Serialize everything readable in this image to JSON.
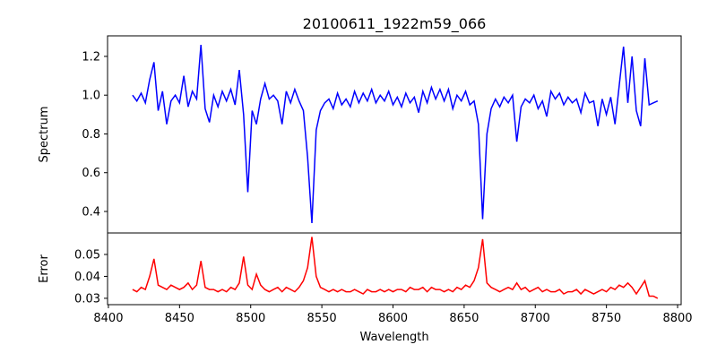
{
  "chart_data": [
    {
      "type": "line",
      "title": "20100611_1922m59_066",
      "xlabel": "",
      "ylabel": "Spectrum",
      "xlim": [
        8399.4,
        8802.5
      ],
      "ylim": [
        0.289,
        1.306
      ],
      "xticks": [],
      "yticks": [
        0.4,
        0.6,
        0.8,
        1.0,
        1.2
      ],
      "ytick_labels": [
        "0.4",
        "0.6",
        "0.8",
        "1.0",
        "1.2"
      ],
      "color": "#0000ff",
      "x_start": 8417,
      "x_step": 3,
      "values": [
        1.0,
        0.97,
        1.01,
        0.96,
        1.08,
        1.17,
        0.92,
        1.02,
        0.85,
        0.97,
        1.0,
        0.96,
        1.1,
        0.94,
        1.02,
        0.98,
        1.26,
        0.93,
        0.86,
        1.0,
        0.94,
        1.02,
        0.97,
        1.03,
        0.95,
        1.13,
        0.9,
        0.5,
        0.92,
        0.85,
        0.98,
        1.06,
        0.98,
        1.0,
        0.97,
        0.85,
        1.02,
        0.96,
        1.03,
        0.97,
        0.92,
        0.68,
        0.34,
        0.82,
        0.92,
        0.96,
        0.98,
        0.93,
        1.01,
        0.95,
        0.98,
        0.94,
        1.02,
        0.96,
        1.01,
        0.97,
        1.03,
        0.96,
        1.0,
        0.97,
        1.02,
        0.95,
        0.99,
        0.94,
        1.01,
        0.96,
        0.99,
        0.91,
        1.02,
        0.96,
        1.04,
        0.98,
        1.03,
        0.97,
        1.03,
        0.93,
        1.0,
        0.97,
        1.02,
        0.95,
        0.97,
        0.85,
        0.36,
        0.8,
        0.93,
        0.98,
        0.94,
        0.99,
        0.96,
        1.0,
        0.76,
        0.94,
        0.98,
        0.96,
        1.0,
        0.93,
        0.97,
        0.89,
        1.02,
        0.98,
        1.01,
        0.95,
        0.99,
        0.96,
        0.98,
        0.91,
        1.01,
        0.96,
        0.97,
        0.84,
        0.98,
        0.9,
        0.99,
        0.85,
        1.05,
        1.25,
        0.96,
        1.2,
        0.92,
        0.84,
        1.19,
        0.95,
        0.96,
        0.97
      ]
    },
    {
      "type": "line",
      "title": "",
      "xlabel": "Wavelength",
      "ylabel": "Error",
      "xlim": [
        8399.4,
        8802.5
      ],
      "ylim": [
        0.0271,
        0.0598
      ],
      "xticks": [
        8400,
        8450,
        8500,
        8550,
        8600,
        8650,
        8700,
        8750,
        8800
      ],
      "xtick_labels": [
        "8400",
        "8450",
        "8500",
        "8550",
        "8600",
        "8650",
        "8700",
        "8750",
        "8800"
      ],
      "yticks": [
        0.03,
        0.04,
        0.05
      ],
      "ytick_labels": [
        "0.03",
        "0.04",
        "0.05"
      ],
      "color": "#ff0000",
      "x_start": 8417,
      "x_step": 3,
      "values": [
        0.034,
        0.033,
        0.035,
        0.034,
        0.04,
        0.048,
        0.036,
        0.035,
        0.034,
        0.036,
        0.035,
        0.034,
        0.035,
        0.037,
        0.034,
        0.036,
        0.047,
        0.035,
        0.034,
        0.034,
        0.033,
        0.034,
        0.033,
        0.035,
        0.034,
        0.037,
        0.049,
        0.036,
        0.034,
        0.041,
        0.036,
        0.034,
        0.033,
        0.034,
        0.035,
        0.033,
        0.035,
        0.034,
        0.033,
        0.035,
        0.038,
        0.044,
        0.058,
        0.04,
        0.035,
        0.034,
        0.033,
        0.034,
        0.033,
        0.034,
        0.033,
        0.033,
        0.034,
        0.033,
        0.032,
        0.034,
        0.033,
        0.033,
        0.034,
        0.033,
        0.034,
        0.033,
        0.034,
        0.034,
        0.033,
        0.035,
        0.034,
        0.034,
        0.035,
        0.033,
        0.035,
        0.034,
        0.034,
        0.033,
        0.034,
        0.033,
        0.035,
        0.034,
        0.036,
        0.035,
        0.038,
        0.044,
        0.057,
        0.037,
        0.035,
        0.034,
        0.033,
        0.034,
        0.035,
        0.034,
        0.037,
        0.034,
        0.035,
        0.033,
        0.034,
        0.035,
        0.033,
        0.034,
        0.033,
        0.033,
        0.034,
        0.032,
        0.033,
        0.033,
        0.034,
        0.032,
        0.034,
        0.033,
        0.032,
        0.033,
        0.034,
        0.033,
        0.035,
        0.034,
        0.036,
        0.035,
        0.037,
        0.035,
        0.032,
        0.035,
        0.038,
        0.031,
        0.031,
        0.03
      ]
    }
  ]
}
